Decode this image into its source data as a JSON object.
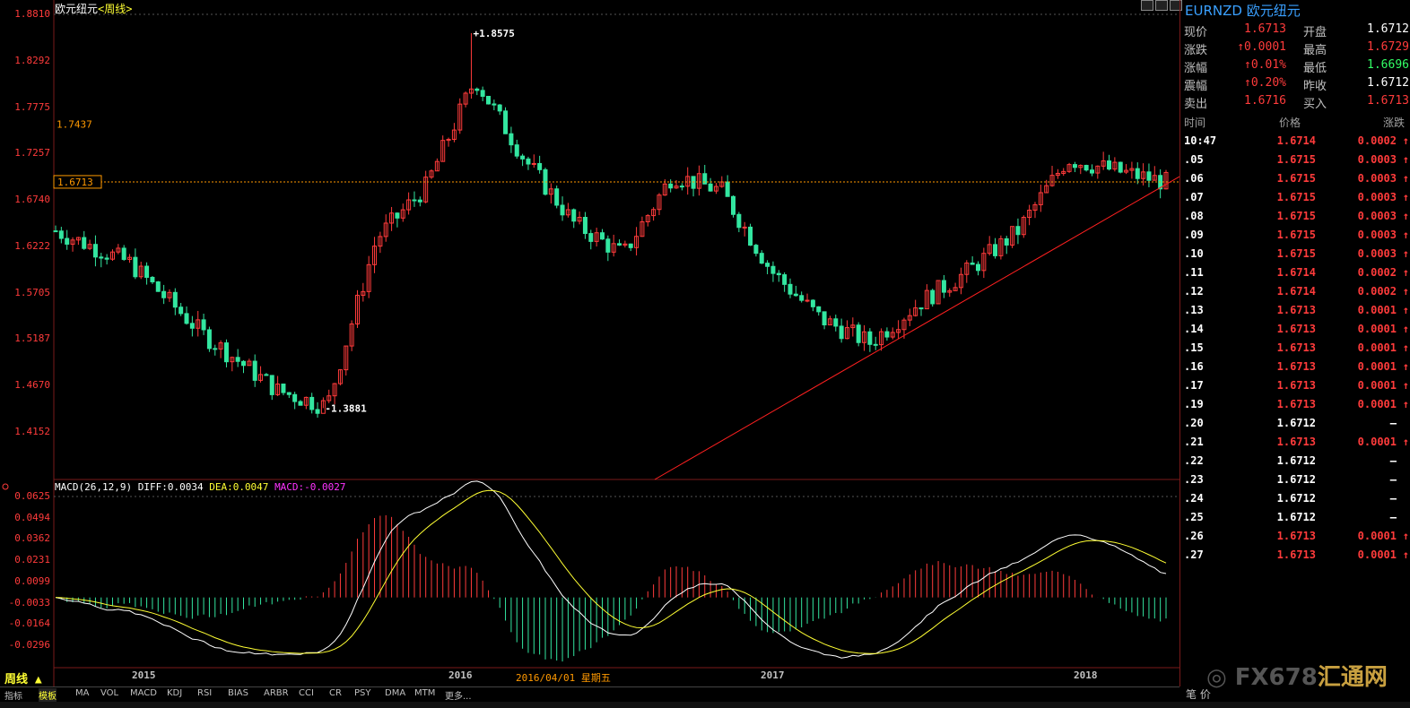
{
  "chart_title": {
    "symbol": "欧元纽元",
    "period": "<周线>"
  },
  "price_axis": [
    "1.8810",
    "1.8292",
    "1.7775",
    "1.7257",
    "1.6740",
    "1.6222",
    "1.5705",
    "1.5187",
    "1.4670",
    "1.4152"
  ],
  "macd_axis": [
    "0.0625",
    "0.0494",
    "0.0362",
    "0.0231",
    "0.0099",
    "-0.0033",
    "-0.0164",
    "-0.0296"
  ],
  "x_axis": [
    "2015",
    "2016",
    "2017",
    "2018"
  ],
  "annotations": {
    "high": "1.8575",
    "low": "1.3881",
    "left_marker": "1.7437",
    "current_marker": "1.6713"
  },
  "macd_header": {
    "params": "MACD(26,12,9)",
    "diff": "DIFF:0.0034",
    "dea": "DEA:0.0047",
    "macd": "MACD:-0.0027"
  },
  "period_label": "周线 ▲",
  "cursor_date": "2016/04/01 星期五",
  "toolbar": [
    "指标",
    "模板",
    "MA",
    "VOL",
    "MACD",
    "KDJ",
    "RSI",
    "BIAS",
    "ARBR",
    "CCI",
    "CR",
    "PSY",
    "DMA",
    "MTM",
    "更多..."
  ],
  "panel": {
    "symbol": "EURNZD 欧元纽元",
    "quote": [
      {
        "l1": "现价",
        "v1": "1.6713",
        "c1": "red",
        "l2": "开盘",
        "v2": "1.6712",
        "c2": "white"
      },
      {
        "l1": "涨跌",
        "v1": "↑0.0001",
        "c1": "red",
        "l2": "最高",
        "v2": "1.6729",
        "c2": "red"
      },
      {
        "l1": "涨幅",
        "v1": "↑0.01%",
        "c1": "red",
        "l2": "最低",
        "v2": "1.6696",
        "c2": "green"
      },
      {
        "l1": "震幅",
        "v1": "↑0.20%",
        "c1": "red",
        "l2": "昨收",
        "v2": "1.6712",
        "c2": "white"
      },
      {
        "l1": "卖出",
        "v1": "1.6716",
        "c1": "red",
        "l2": "买入",
        "v2": "1.6713",
        "c2": "red"
      }
    ],
    "tick_headers": [
      "时间",
      "价格",
      "涨跌"
    ],
    "ticks": [
      {
        "t": "10:47",
        "p": "1.6714",
        "c": "0.0002",
        "d": "up"
      },
      {
        "t": ".05",
        "p": "1.6715",
        "c": "0.0003",
        "d": "up"
      },
      {
        "t": ".06",
        "p": "1.6715",
        "c": "0.0003",
        "d": "up"
      },
      {
        "t": ".07",
        "p": "1.6715",
        "c": "0.0003",
        "d": "up"
      },
      {
        "t": ".08",
        "p": "1.6715",
        "c": "0.0003",
        "d": "up"
      },
      {
        "t": ".09",
        "p": "1.6715",
        "c": "0.0003",
        "d": "up"
      },
      {
        "t": ".10",
        "p": "1.6715",
        "c": "0.0003",
        "d": "up"
      },
      {
        "t": ".11",
        "p": "1.6714",
        "c": "0.0002",
        "d": "up"
      },
      {
        "t": ".12",
        "p": "1.6714",
        "c": "0.0002",
        "d": "up"
      },
      {
        "t": ".13",
        "p": "1.6713",
        "c": "0.0001",
        "d": "up"
      },
      {
        "t": ".14",
        "p": "1.6713",
        "c": "0.0001",
        "d": "up"
      },
      {
        "t": ".15",
        "p": "1.6713",
        "c": "0.0001",
        "d": "up"
      },
      {
        "t": ".16",
        "p": "1.6713",
        "c": "0.0001",
        "d": "up"
      },
      {
        "t": ".17",
        "p": "1.6713",
        "c": "0.0001",
        "d": "up"
      },
      {
        "t": ".19",
        "p": "1.6713",
        "c": "0.0001",
        "d": "up"
      },
      {
        "t": ".20",
        "p": "1.6712",
        "c": "—",
        "d": "flat"
      },
      {
        "t": ".21",
        "p": "1.6713",
        "c": "0.0001",
        "d": "up"
      },
      {
        "t": ".22",
        "p": "1.6712",
        "c": "—",
        "d": "flat"
      },
      {
        "t": ".23",
        "p": "1.6712",
        "c": "—",
        "d": "flat"
      },
      {
        "t": ".24",
        "p": "1.6712",
        "c": "—",
        "d": "flat"
      },
      {
        "t": ".25",
        "p": "1.6712",
        "c": "—",
        "d": "flat"
      },
      {
        "t": ".26",
        "p": "1.6713",
        "c": "0.0001",
        "d": "up"
      },
      {
        "t": ".27",
        "p": "1.6713",
        "c": "0.0001",
        "d": "up"
      }
    ],
    "bottom": "笔  价"
  },
  "logo": {
    "text1": "FX678",
    "text2": "汇通网"
  },
  "colors": {
    "up": "#ff3b3b",
    "down": "#33e6a0",
    "diff": "#ffffff",
    "dea": "#ffff33",
    "trend": "#ff2020"
  },
  "chart_data": {
    "type": "candlestick",
    "title": "欧元纽元 周线",
    "ylim": [
      1.38,
      1.89
    ],
    "x_range": [
      "2014-09",
      "2018-06"
    ],
    "anchors": [
      {
        "date": "2014-09",
        "close": 1.61
      },
      {
        "date": "2014-12",
        "close": 1.57
      },
      {
        "date": "2015-03",
        "close": 1.48
      },
      {
        "date": "2015-06",
        "close": 1.41
      },
      {
        "date": "2015-08",
        "close": 1.39
      },
      {
        "date": "2015-10",
        "close": 1.6
      },
      {
        "date": "2015-12",
        "close": 1.665
      },
      {
        "date": "2016-02",
        "close": 1.8
      },
      {
        "date": "2016-04",
        "close": 1.7
      },
      {
        "date": "2016-06",
        "close": 1.62
      },
      {
        "date": "2016-08",
        "close": 1.58
      },
      {
        "date": "2016-10",
        "close": 1.68
      },
      {
        "date": "2016-12",
        "close": 1.66
      },
      {
        "date": "2017-02",
        "close": 1.56
      },
      {
        "date": "2017-04",
        "close": 1.5
      },
      {
        "date": "2017-06",
        "close": 1.47
      },
      {
        "date": "2017-08",
        "close": 1.52
      },
      {
        "date": "2017-10",
        "close": 1.56
      },
      {
        "date": "2017-12",
        "close": 1.61
      },
      {
        "date": "2018-02",
        "close": 1.7
      },
      {
        "date": "2018-04",
        "close": 1.685
      },
      {
        "date": "2018-06",
        "close": 1.671
      }
    ],
    "macd": {
      "diff_last": 0.0034,
      "dea_last": 0.0047,
      "macd_last": -0.0027,
      "ylim": [
        -0.035,
        0.0625
      ]
    }
  }
}
